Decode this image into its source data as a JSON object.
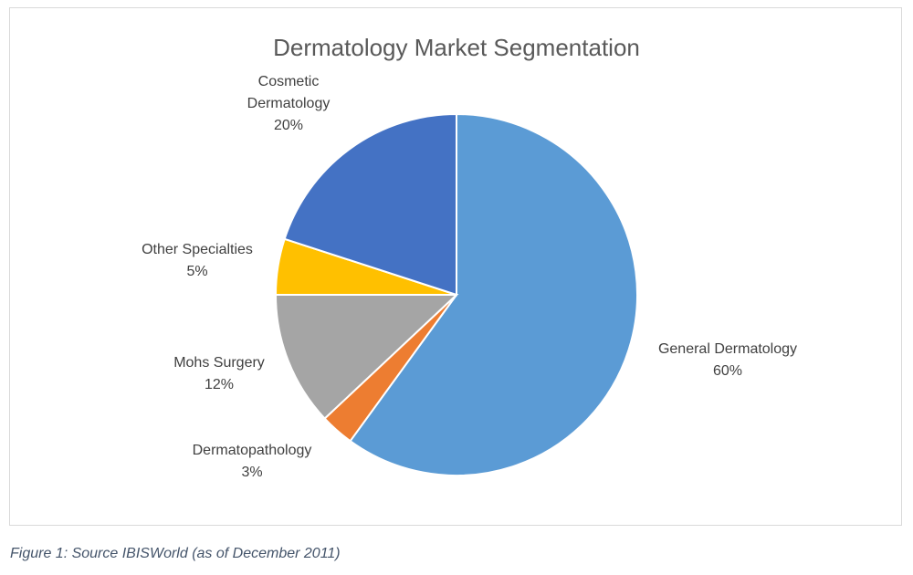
{
  "chart_data": {
    "type": "pie",
    "title": "Dermatology Market Segmentation",
    "categories": [
      "General Dermatology",
      "Dermatopathology",
      "Mohs Surgery",
      "Other Specialties",
      "Cosmetic Dermatology"
    ],
    "values": [
      60,
      3,
      12,
      5,
      20
    ],
    "value_labels": [
      "60%",
      "3%",
      "12%",
      "5%",
      "20%"
    ],
    "label_lines": [
      [
        "General Dermatology"
      ],
      [
        "Dermatopathology"
      ],
      [
        "Mohs Surgery"
      ],
      [
        "Other Specialties"
      ],
      [
        "Cosmetic",
        "Dermatology"
      ]
    ],
    "colors": [
      "#5b9bd5",
      "#ed7d31",
      "#a5a5a5",
      "#ffc000",
      "#4472c4"
    ],
    "start_angle_deg": 0,
    "direction": "clockwise",
    "legend": "none"
  },
  "caption": "Figure 1: Source IBISWorld (as of December 2011)"
}
